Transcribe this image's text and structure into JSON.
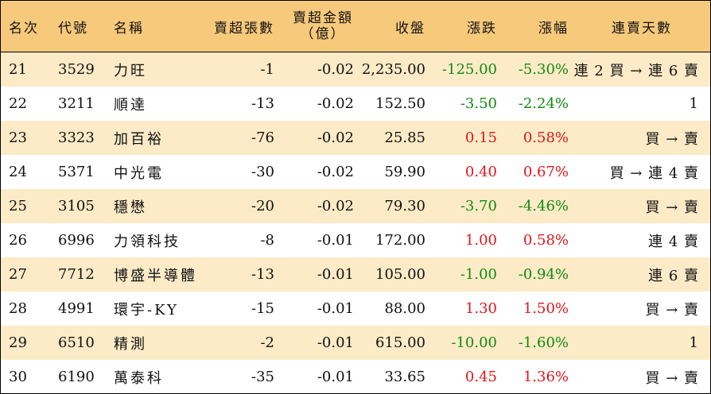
{
  "header": {
    "rank": "名次",
    "code": "代號",
    "name": "名稱",
    "sheets": "賣超張數",
    "amount_line1": "賣超金額",
    "amount_line2": "（億）",
    "close": "收盤",
    "change": "漲跌",
    "pct": "漲幅",
    "days": "連賣天數"
  },
  "colors": {
    "header_bg": "#f7c97b",
    "alt_row_bg": "#fdebc7",
    "up": "#e0161c",
    "down": "#118a11"
  },
  "rows": [
    {
      "rank": "21",
      "code": "3529",
      "name": "力旺",
      "sheets": "-1",
      "amount": "-0.02",
      "close": "2,235.00",
      "change": "-125.00",
      "pct": "-5.30%",
      "days": "連 2 買 → 連 6 賣",
      "dir": "down"
    },
    {
      "rank": "22",
      "code": "3211",
      "name": "順達",
      "sheets": "-13",
      "amount": "-0.02",
      "close": "152.50",
      "change": "-3.50",
      "pct": "-2.24%",
      "days": "1",
      "dir": "down"
    },
    {
      "rank": "23",
      "code": "3323",
      "name": "加百裕",
      "sheets": "-76",
      "amount": "-0.02",
      "close": "25.85",
      "change": "0.15",
      "pct": "0.58%",
      "days": "買 → 賣",
      "dir": "up"
    },
    {
      "rank": "24",
      "code": "5371",
      "name": "中光電",
      "sheets": "-30",
      "amount": "-0.02",
      "close": "59.90",
      "change": "0.40",
      "pct": "0.67%",
      "days": "買 → 連 4 賣",
      "dir": "up"
    },
    {
      "rank": "25",
      "code": "3105",
      "name": "穩懋",
      "sheets": "-20",
      "amount": "-0.02",
      "close": "79.30",
      "change": "-3.70",
      "pct": "-4.46%",
      "days": "買 → 賣",
      "dir": "down"
    },
    {
      "rank": "26",
      "code": "6996",
      "name": "力領科技",
      "sheets": "-8",
      "amount": "-0.01",
      "close": "172.00",
      "change": "1.00",
      "pct": "0.58%",
      "days": "連 4 賣",
      "dir": "up"
    },
    {
      "rank": "27",
      "code": "7712",
      "name": "博盛半導體",
      "sheets": "-13",
      "amount": "-0.01",
      "close": "105.00",
      "change": "-1.00",
      "pct": "-0.94%",
      "days": "連 6 賣",
      "dir": "down"
    },
    {
      "rank": "28",
      "code": "4991",
      "name": "環宇-KY",
      "sheets": "-15",
      "amount": "-0.01",
      "close": "88.00",
      "change": "1.30",
      "pct": "1.50%",
      "days": "買 → 賣",
      "dir": "up"
    },
    {
      "rank": "29",
      "code": "6510",
      "name": "精測",
      "sheets": "-2",
      "amount": "-0.01",
      "close": "615.00",
      "change": "-10.00",
      "pct": "-1.60%",
      "days": "1",
      "dir": "down"
    },
    {
      "rank": "30",
      "code": "6190",
      "name": "萬泰科",
      "sheets": "-35",
      "amount": "-0.01",
      "close": "33.65",
      "change": "0.45",
      "pct": "1.36%",
      "days": "買 → 賣",
      "dir": "up"
    }
  ]
}
